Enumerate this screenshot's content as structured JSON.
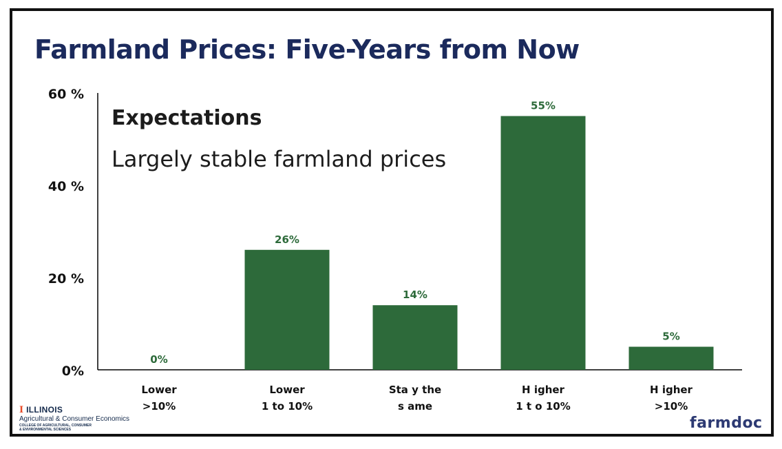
{
  "slide": {
    "title": "Farmland Prices: Five-Years from Now",
    "callout": {
      "heading": "Expectations",
      "body": "Largely stable farmland prices"
    }
  },
  "chart_data": {
    "type": "bar",
    "categories": [
      [
        "Lower",
        ">10%"
      ],
      [
        "Lower",
        "1 to 10%"
      ],
      [
        "Sta y the",
        "s ame"
      ],
      [
        "H igher",
        "1 t o 10%"
      ],
      [
        "H igher",
        ">10%"
      ]
    ],
    "values": [
      0,
      26,
      14,
      55,
      5
    ],
    "data_labels": [
      "0%",
      "26%",
      "14%",
      "55%",
      "5%"
    ],
    "ylim": [
      0,
      60
    ],
    "yticks": [
      0,
      20,
      40,
      60
    ],
    "ytick_labels": [
      "0%",
      "20 %",
      "40 %",
      "60 %"
    ],
    "grid": false,
    "legend": "none",
    "colors": {
      "bar": "#2d6a3a",
      "data_label": "#2d6a3a",
      "axis": "#000000"
    }
  },
  "footer": {
    "illinois": {
      "mark": "I",
      "name": "ILLINOIS",
      "dept": "Agricultural & Consumer Economics",
      "college_line1": "COLLEGE OF AGRICULTURAL, CONSUMER",
      "college_line2": "& ENVIRONMENTAL SCIENCES"
    },
    "farmdoc": "farmdoc"
  },
  "colors": {
    "title": "#1b2a5c",
    "illinois_orange": "#e84a27",
    "illinois_blue": "#13294b",
    "farmdoc_blue": "#2d3a73"
  }
}
